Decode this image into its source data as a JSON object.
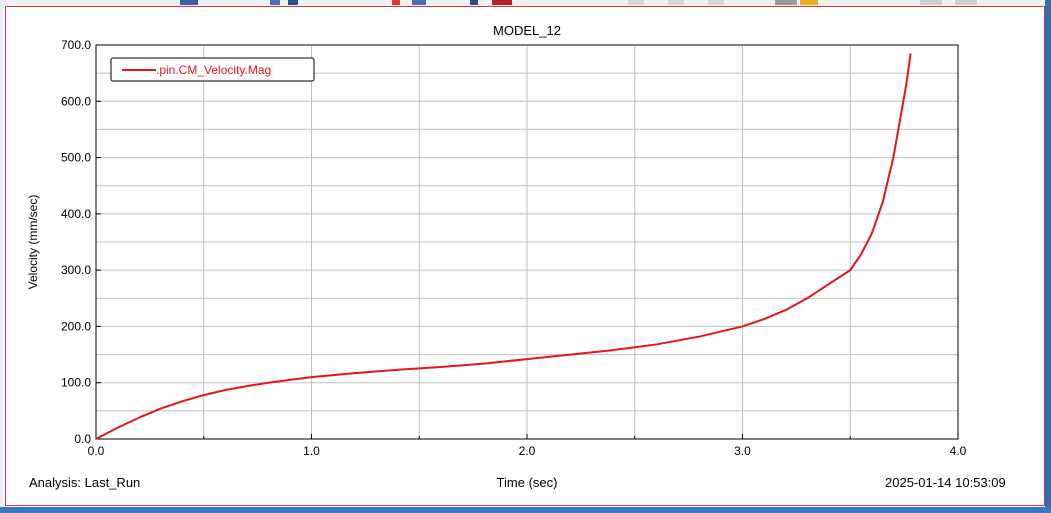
{
  "chart_data": {
    "type": "line",
    "title": "MODEL_12",
    "xlabel": "Time (sec)",
    "ylabel": "Velocity (mm/sec)",
    "xlim": [
      0.0,
      4.0
    ],
    "ylim": [
      0.0,
      700.0
    ],
    "xticks": [
      "0.0",
      "1.0",
      "2.0",
      "3.0",
      "4.0"
    ],
    "yticks": [
      "0.0",
      "100.0",
      "200.0",
      "300.0",
      "400.0",
      "500.0",
      "600.0",
      "700.0"
    ],
    "grid": true,
    "legend_position": "top-left",
    "series": [
      {
        "name": ".pin.CM_Velocity.Mag",
        "color": "#e8141c",
        "x": [
          0.0,
          0.1,
          0.2,
          0.3,
          0.4,
          0.5,
          0.6,
          0.7,
          0.8,
          0.9,
          1.0,
          1.2,
          1.4,
          1.6,
          1.8,
          2.0,
          2.2,
          2.4,
          2.6,
          2.8,
          3.0,
          3.1,
          3.2,
          3.3,
          3.4,
          3.5,
          3.55,
          3.6,
          3.65,
          3.7,
          3.73,
          3.76,
          3.78
        ],
        "y": [
          0.0,
          20.0,
          38.0,
          54.0,
          67.0,
          78.0,
          87.0,
          94.0,
          100.0,
          105.0,
          110.0,
          117.0,
          123.0,
          128.0,
          134.0,
          142.0,
          150.0,
          158.0,
          168.0,
          182.0,
          200.0,
          213.0,
          229.0,
          250.0,
          275.0,
          300.0,
          328.0,
          365.0,
          420.0,
          500.0,
          565.0,
          630.0,
          685.0
        ]
      }
    ]
  },
  "footer": {
    "analysis": "Analysis:  Last_Run",
    "timestamp": "2025-01-14 10:53:09"
  },
  "colors": {
    "frame_border": "#d23a3a",
    "grid": "#c0c0c0",
    "window_edge": "#2f6fb3"
  }
}
